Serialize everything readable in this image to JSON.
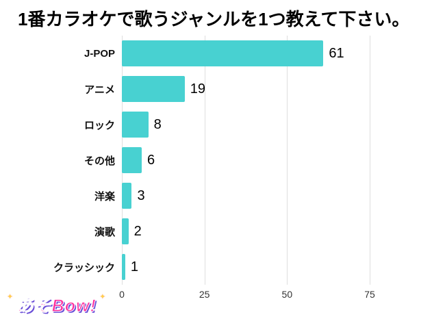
{
  "title": "1番カラオケで歌うジャンルを1つ教えて下さい。",
  "logo": {
    "text": "あそBow!",
    "color": "#ff2f9e",
    "shadow_color": "#6b4fd8",
    "sparkle": "✦"
  },
  "chart_data": {
    "type": "bar",
    "orientation": "horizontal",
    "title": "1番カラオケで歌うジャンルを1つ教えて下さい。",
    "categories": [
      "J-POP",
      "アニメ",
      "ロック",
      "その他",
      "洋楽",
      "演歌",
      "クラッシック"
    ],
    "values": [
      61,
      19,
      8,
      6,
      3,
      2,
      1
    ],
    "xlabel": "",
    "ylabel": "",
    "xlim": [
      0,
      75
    ],
    "xticks": [
      0,
      25,
      50,
      75
    ],
    "bar_color": "#48d1d1",
    "grid": true,
    "grid_color": "#dedede",
    "legend": false
  }
}
